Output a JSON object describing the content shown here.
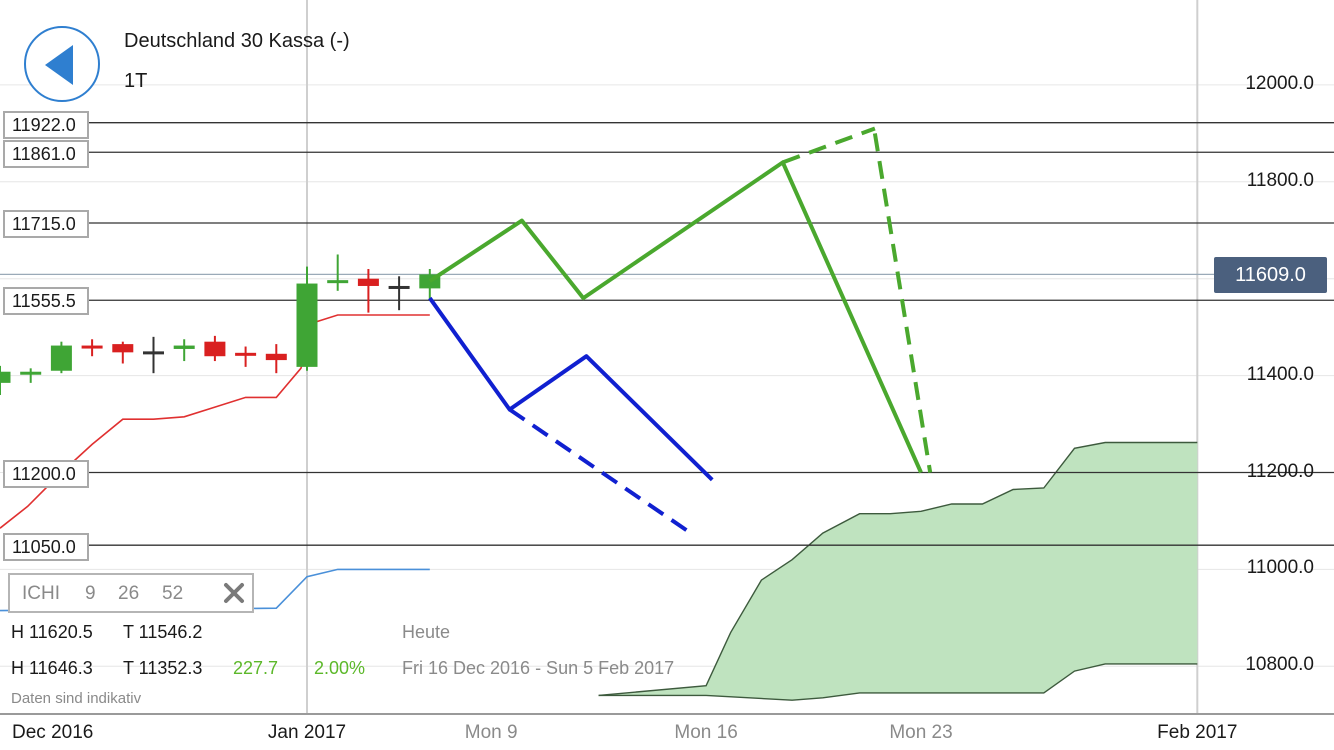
{
  "header": {
    "instrument_title": "Deutschland 30 Kassa (-)",
    "period_label": "1T"
  },
  "price_badge": "11609.0",
  "level_labels": [
    "11922.0",
    "11861.0",
    "11715.0",
    "11555.5",
    "11200.0",
    "11050.0"
  ],
  "indicator": {
    "name": "ICHI",
    "param1": "9",
    "param2": "26",
    "param3": "52"
  },
  "stats": {
    "row1_high": "H 11620.5",
    "row1_low": "T 11546.2",
    "row1_label": "Heute",
    "row2_high": "H 11646.3",
    "row2_low": "T 11352.3",
    "row2_change": "227.7",
    "row2_change_pct": "2.00%",
    "row2_range": "Fri 16 Dec 2016 - Sun 5 Feb 2017"
  },
  "disclaimer": "Daten sind indikativ",
  "colors": {
    "bull": "#3fa535",
    "bear": "#d92020",
    "doji": "#333333",
    "tenkan": "#e03030",
    "chikou": "#4a90d9",
    "cloud_fill": "#bfe3bf",
    "projection_up": "#4aa82e",
    "projection_down": "#1020d0",
    "accent": "#2f7fd0"
  },
  "chart_data": {
    "type": "candlestick",
    "title": "Deutschland 30 Kassa (-)",
    "timeframe": "1T",
    "ylim": [
      10720,
      12180
    ],
    "y_ticks": [
      10800,
      11000,
      11200,
      11400,
      11600,
      11800,
      12000
    ],
    "y_tick_labels": [
      "10800.0",
      "11000.0",
      "11200.0",
      "11400.0",
      "11600.0",
      "11800.0",
      "12000.0"
    ],
    "x_ticks": [
      {
        "label": "Dec 2016",
        "pos": -18.3,
        "grid": false,
        "style": "dark"
      },
      {
        "label": "Jan 2017",
        "pos": 0,
        "grid": true,
        "style": "dark"
      },
      {
        "label": "Mon 9",
        "pos": 6,
        "grid": false,
        "style": "grey"
      },
      {
        "label": "Mon 16",
        "pos": 13,
        "grid": false,
        "style": "grey"
      },
      {
        "label": "Mon 23",
        "pos": 20,
        "grid": false,
        "style": "grey"
      },
      {
        "label": "Feb 2017",
        "pos": 29,
        "grid": true,
        "style": "dark"
      }
    ],
    "candles": [
      {
        "t": -10,
        "o": 11385,
        "h": 11420,
        "l": 11360,
        "c": 11408
      },
      {
        "t": -9,
        "o": 11405,
        "h": 11415,
        "l": 11385,
        "c": 11408
      },
      {
        "t": -8,
        "o": 11410,
        "h": 11470,
        "l": 11405,
        "c": 11462
      },
      {
        "t": -7,
        "o": 11462,
        "h": 11475,
        "l": 11440,
        "c": 11458
      },
      {
        "t": -6,
        "o": 11465,
        "h": 11470,
        "l": 11425,
        "c": 11448
      },
      {
        "t": -5,
        "o": 11450,
        "h": 11480,
        "l": 11405,
        "c": 11450
      },
      {
        "t": -4,
        "o": 11455,
        "h": 11475,
        "l": 11430,
        "c": 11462
      },
      {
        "t": -3,
        "o": 11470,
        "h": 11482,
        "l": 11430,
        "c": 11440
      },
      {
        "t": -2,
        "o": 11447,
        "h": 11460,
        "l": 11418,
        "c": 11441
      },
      {
        "t": -1,
        "o": 11445,
        "h": 11465,
        "l": 11405,
        "c": 11432
      },
      {
        "t": 0,
        "o": 11418,
        "h": 11625,
        "l": 11410,
        "c": 11590
      },
      {
        "t": 1,
        "o": 11593,
        "h": 11650,
        "l": 11575,
        "c": 11597
      },
      {
        "t": 2,
        "o": 11600,
        "h": 11620,
        "l": 11530,
        "c": 11585
      },
      {
        "t": 3,
        "o": 11585,
        "h": 11605,
        "l": 11535,
        "c": 11585
      },
      {
        "t": 4,
        "o": 11580,
        "h": 11620,
        "l": 11558,
        "c": 11609
      }
    ],
    "tenkan_sen": [
      [
        -10,
        11085
      ],
      [
        -9.1,
        11130
      ],
      [
        -8,
        11200
      ],
      [
        -7,
        11258
      ],
      [
        -6,
        11310
      ],
      [
        -5,
        11310
      ],
      [
        -4,
        11315
      ],
      [
        -3,
        11335
      ],
      [
        -2,
        11355
      ],
      [
        -1,
        11355
      ],
      [
        -0.2,
        11415
      ],
      [
        -0.1,
        11435
      ],
      [
        0,
        11505
      ],
      [
        1,
        11525
      ],
      [
        4,
        11525
      ]
    ],
    "chikou_span": [
      [
        -10,
        10915
      ],
      [
        -1,
        10920
      ],
      [
        0,
        10985
      ],
      [
        1,
        11000
      ],
      [
        4,
        11000
      ]
    ],
    "kumo_upper": [
      [
        9.5,
        10740
      ],
      [
        13,
        10760
      ],
      [
        13.8,
        10870
      ],
      [
        14.8,
        10978
      ],
      [
        15.8,
        11020
      ],
      [
        16.8,
        11075
      ],
      [
        18,
        11115
      ],
      [
        19,
        11115
      ],
      [
        20,
        11120
      ],
      [
        21,
        11135
      ],
      [
        22,
        11135
      ],
      [
        23,
        11165
      ],
      [
        24,
        11168
      ],
      [
        25,
        11250
      ],
      [
        26,
        11262
      ],
      [
        29,
        11262
      ]
    ],
    "kumo_lower": [
      [
        9.5,
        10740
      ],
      [
        13,
        10740
      ],
      [
        15.8,
        10730
      ],
      [
        16.8,
        10735
      ],
      [
        18,
        10745
      ],
      [
        22,
        10745
      ],
      [
        24,
        10745
      ],
      [
        25,
        10790
      ],
      [
        26,
        10805
      ],
      [
        29,
        10805
      ]
    ],
    "horizontal_levels": [
      11922,
      11861,
      11715,
      11555.5,
      11200,
      11050
    ],
    "last_price": 11609,
    "projections": [
      {
        "name": "bull-path",
        "color": "#4aa82e",
        "dashed": false,
        "points": [
          [
            4,
            11595
          ],
          [
            7,
            11720
          ],
          [
            9,
            11560
          ],
          [
            15.5,
            11840
          ],
          [
            20,
            11200
          ]
        ]
      },
      {
        "name": "bull-extension",
        "color": "#4aa82e",
        "dashed": true,
        "points": [
          [
            15.5,
            11840
          ],
          [
            18.5,
            11910
          ]
        ]
      },
      {
        "name": "bull-retrace",
        "color": "#4aa82e",
        "dashed": true,
        "points": [
          [
            18.5,
            11900
          ],
          [
            20.3,
            11200
          ]
        ]
      },
      {
        "name": "bear-path",
        "color": "#1020d0",
        "dashed": false,
        "points": [
          [
            4,
            11560
          ],
          [
            6.6,
            11330
          ],
          [
            9.1,
            11440
          ],
          [
            13.2,
            11185
          ]
        ]
      },
      {
        "name": "bear-extension",
        "color": "#1020d0",
        "dashed": true,
        "points": [
          [
            6.6,
            11330
          ],
          [
            12.5,
            11075
          ]
        ]
      }
    ]
  }
}
